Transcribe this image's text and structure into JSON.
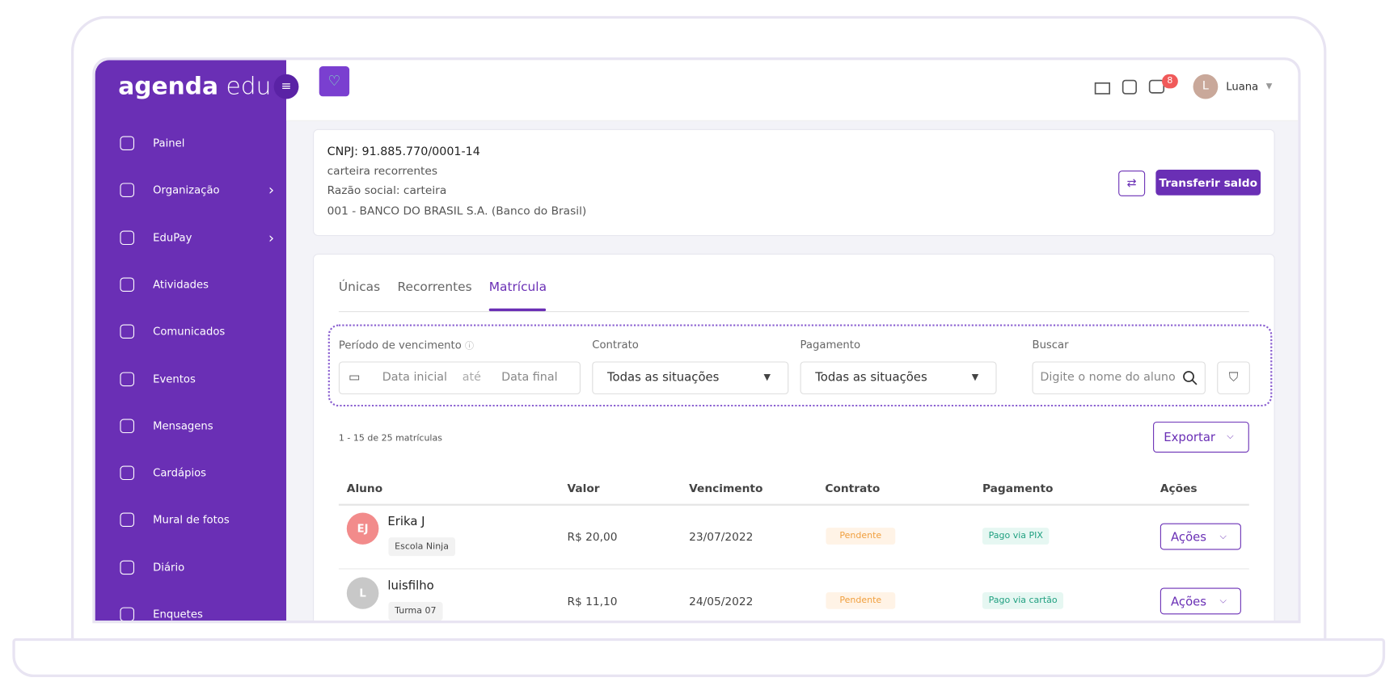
{
  "sidebar": {
    "logo_main": "agenda",
    "logo_sub": "edu",
    "items": [
      "Painel",
      "Organização",
      "EduPay",
      "Atividades",
      "Comunicados",
      "Eventos",
      "Mensagens",
      "Cardápios",
      "Mural de fotos",
      "Diário",
      "Enquetes"
    ],
    "expandable": [
      1,
      2
    ]
  },
  "header": {
    "notification_count": "8",
    "user_initial": "L",
    "user_name": "Luana"
  },
  "account": {
    "cnpj": "CNPJ: 91.885.770/0001-14",
    "name": "carteira recorrentes",
    "company": "Razão social: carteira",
    "bank": "001 - BANCO DO BRASIL S.A. (Banco do Brasil)",
    "transfer_button": "Transferir saldo"
  },
  "tabs": {
    "items": [
      "Únicas",
      "Recorrentes",
      "Matrícula"
    ],
    "active": 2
  },
  "filters": {
    "period_label": "Período de vencimento",
    "start_placeholder": "Data inicial",
    "between": "até",
    "end_placeholder": "Data final",
    "contract_label": "Contrato",
    "contract_value": "Todas as situações",
    "payment_label": "Pagamento",
    "payment_value": "Todas as situações",
    "search_label": "Buscar",
    "search_placeholder": "Digite o nome do aluno"
  },
  "list": {
    "count": "1 - 15 de 25 matrículas",
    "export_button": "Exportar"
  },
  "table": {
    "columns": [
      "Aluno",
      "Valor",
      "Vencimento",
      "Contrato",
      "Pagamento",
      "Ações"
    ],
    "rows": [
      {
        "initials": "EJ",
        "avatar_color": "#f28b8b",
        "name": "Erika J",
        "group": "Escola Ninja",
        "value": "R$ 20,00",
        "due": "23/07/2022",
        "contract": "Pendente",
        "payment": "Pago via PIX",
        "action": "Ações"
      },
      {
        "initials": "L",
        "avatar_color": "#c8c8c8",
        "name": "luisfilho",
        "group": "Turma 07",
        "value": "R$ 11,10",
        "due": "24/05/2022",
        "contract": "Pendente",
        "payment": "Pago via cartão",
        "action": "Ações"
      }
    ]
  }
}
